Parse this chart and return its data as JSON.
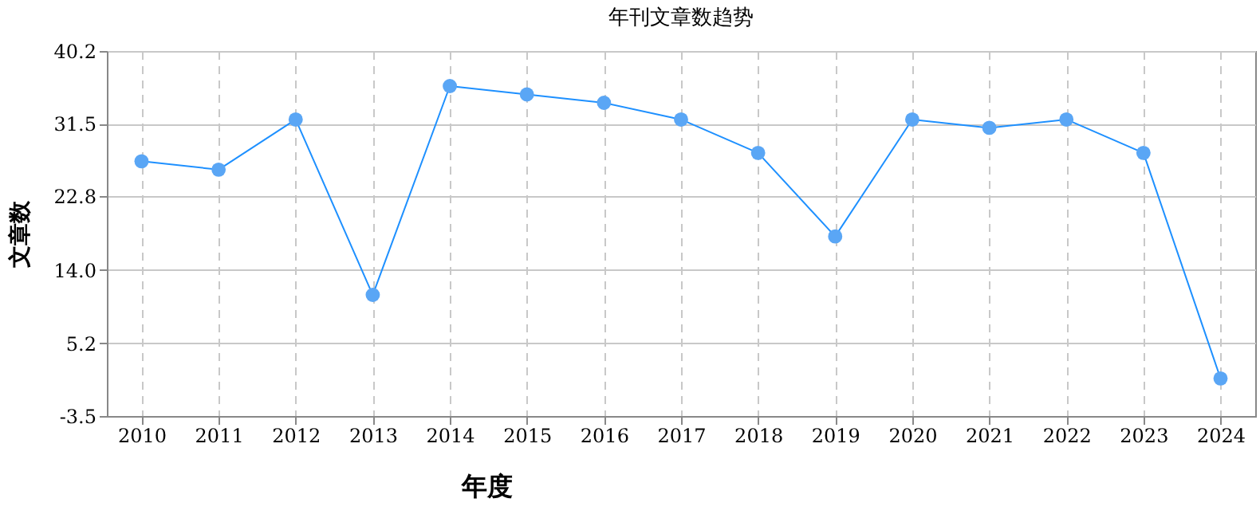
{
  "chart_data": {
    "type": "line",
    "title": "年刊文章数趋势",
    "xlabel": "年度",
    "ylabel": "文章数",
    "categories": [
      "2010",
      "2011",
      "2012",
      "2013",
      "2014",
      "2015",
      "2016",
      "2017",
      "2018",
      "2019",
      "2020",
      "2021",
      "2022",
      "2023",
      "2024"
    ],
    "series": [
      {
        "color": "#1e90ff",
        "values": [
          27,
          26,
          32,
          11,
          36,
          35,
          34,
          32,
          28,
          18,
          32,
          31,
          32,
          28,
          1
        ]
      }
    ],
    "ylim": [
      -3.5,
      40.2
    ],
    "yticks": [
      -3.5,
      5.2,
      {
        "value": 14,
        "label": "14.0"
      },
      22.8,
      31.5,
      40.2
    ],
    "grid": true,
    "marker": "circle",
    "line_style": "solid"
  }
}
